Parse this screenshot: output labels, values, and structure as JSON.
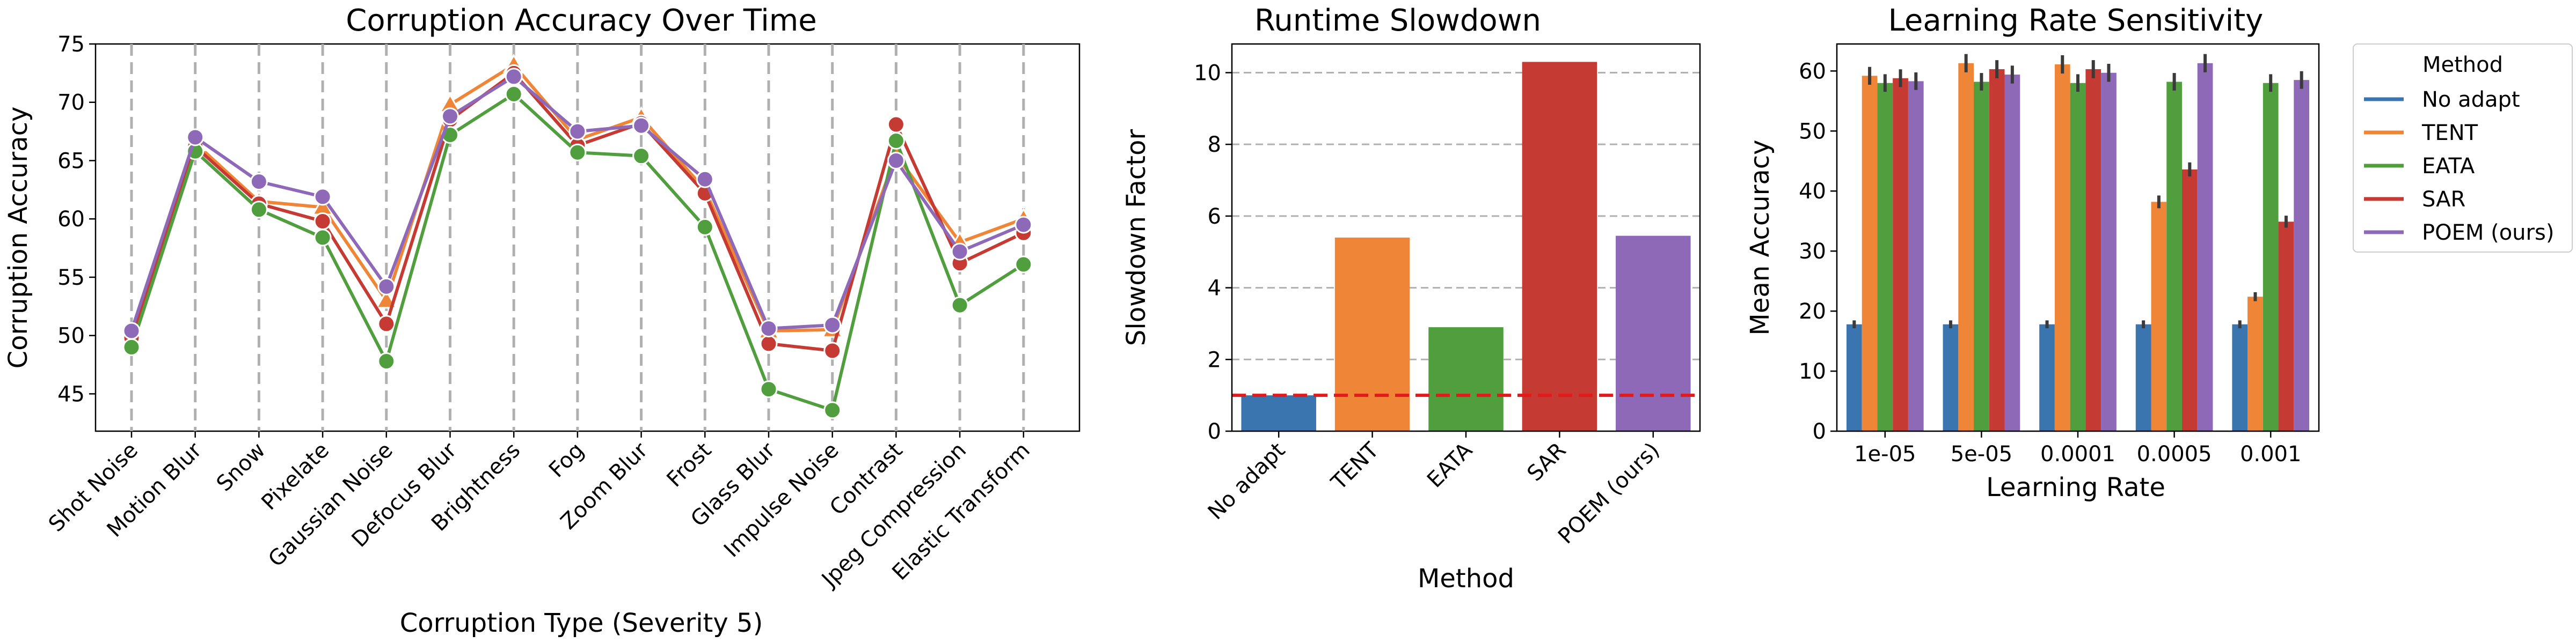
{
  "colors": {
    "No adapt": "#3b75af",
    "TENT": "#ef8536",
    "EATA": "#519e3e",
    "SAR": "#c53a32",
    "POEM (ours)": "#8d69b8",
    "baseline_line": "#e31a1c",
    "grid": "#b0b0b0"
  },
  "legend": {
    "title": "Method",
    "placement": "outside-right",
    "items": [
      "No adapt",
      "TENT",
      "EATA",
      "SAR",
      "POEM (ours)"
    ]
  },
  "chart_data": [
    {
      "id": "corruption",
      "type": "line",
      "title": "Corruption Accuracy Over Time",
      "xlabel": "Corruption Type (Severity 5)",
      "ylabel": "Corruption Accuracy",
      "categories": [
        "Shot Noise",
        "Motion Blur",
        "Snow",
        "Pixelate",
        "Gaussian Noise",
        "Defocus Blur",
        "Brightness",
        "Fog",
        "Zoom Blur",
        "Frost",
        "Glass Blur",
        "Impulse Noise",
        "Contrast",
        "Jpeg Compression",
        "Elastic Transform"
      ],
      "ylim": [
        41.8,
        75
      ],
      "yticks": [
        45,
        50,
        55,
        60,
        65,
        70,
        75
      ],
      "vertical_dashed_grid": true,
      "series": [
        {
          "name": "TENT",
          "values": [
            50.2,
            66.5,
            61.5,
            61.0,
            53.0,
            69.8,
            73.2,
            66.8,
            68.7,
            62.5,
            50.4,
            50.5,
            65.5,
            58.0,
            60.0
          ]
        },
        {
          "name": "SAR",
          "values": [
            49.8,
            66.2,
            61.3,
            59.8,
            51.0,
            68.5,
            72.5,
            66.3,
            68.2,
            62.2,
            49.3,
            48.7,
            68.1,
            56.2,
            58.8
          ]
        },
        {
          "name": "EATA",
          "values": [
            49.0,
            65.8,
            60.8,
            58.4,
            47.8,
            67.2,
            70.7,
            65.7,
            65.4,
            59.3,
            45.4,
            43.6,
            66.7,
            52.6,
            56.1
          ]
        },
        {
          "name": "POEM (ours)",
          "values": [
            50.4,
            67.0,
            63.2,
            61.9,
            54.2,
            68.8,
            72.2,
            67.5,
            68.0,
            63.4,
            50.6,
            50.9,
            65.0,
            57.2,
            59.5
          ]
        }
      ]
    },
    {
      "id": "runtime",
      "type": "bar",
      "title": "Runtime Slowdown",
      "xlabel": "Method",
      "ylabel": "Slowdown Factor",
      "categories": [
        "No adapt",
        "TENT",
        "EATA",
        "SAR",
        "POEM (ours)"
      ],
      "values": [
        1.0,
        5.4,
        2.9,
        10.3,
        5.45
      ],
      "ylim": [
        0,
        10.8
      ],
      "yticks": [
        0,
        2,
        4,
        6,
        8,
        10
      ],
      "reference_line": 1.0,
      "horizontal_dashed_grid": true
    },
    {
      "id": "lr",
      "type": "bar",
      "title": "Learning Rate Sensitivity",
      "xlabel": "Learning Rate",
      "ylabel": "Mean Accuracy",
      "categories": [
        "1e-05",
        "5e-05",
        "0.0001",
        "0.0005",
        "0.001"
      ],
      "ylim": [
        0,
        64.5
      ],
      "yticks": [
        0,
        10,
        20,
        30,
        40,
        50,
        60
      ],
      "error_bars": true,
      "series": [
        {
          "name": "No adapt",
          "values": [
            17.8,
            17.8,
            17.8,
            17.8,
            17.8
          ]
        },
        {
          "name": "TENT",
          "values": [
            59.2,
            61.3,
            61.1,
            38.2,
            22.4
          ]
        },
        {
          "name": "EATA",
          "values": [
            58.0,
            58.2,
            58.0,
            58.2,
            58.0
          ]
        },
        {
          "name": "SAR",
          "values": [
            58.8,
            60.3,
            60.3,
            43.6,
            34.9
          ]
        },
        {
          "name": "POEM (ours)",
          "values": [
            58.3,
            59.4,
            59.7,
            61.3,
            58.5
          ]
        }
      ]
    }
  ]
}
